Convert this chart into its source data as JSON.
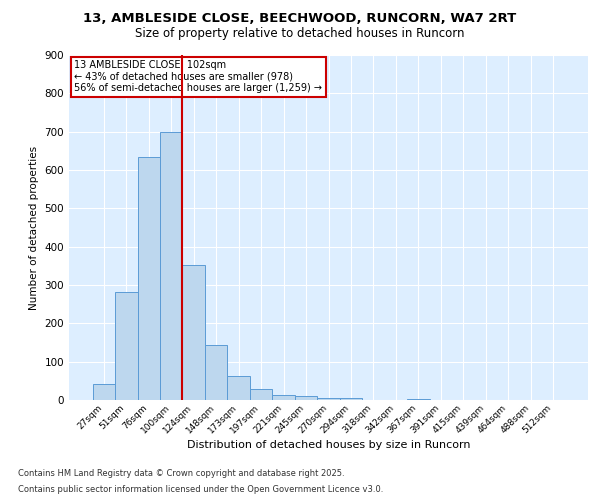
{
  "title_line1": "13, AMBLESIDE CLOSE, BEECHWOOD, RUNCORN, WA7 2RT",
  "title_line2": "Size of property relative to detached houses in Runcorn",
  "categories": [
    "27sqm",
    "51sqm",
    "76sqm",
    "100sqm",
    "124sqm",
    "148sqm",
    "173sqm",
    "197sqm",
    "221sqm",
    "245sqm",
    "270sqm",
    "294sqm",
    "318sqm",
    "342sqm",
    "367sqm",
    "391sqm",
    "415sqm",
    "439sqm",
    "464sqm",
    "488sqm",
    "512sqm"
  ],
  "values": [
    42,
    283,
    633,
    700,
    353,
    144,
    63,
    30,
    13,
    10,
    6,
    6,
    0,
    0,
    3,
    0,
    0,
    0,
    0,
    0,
    0
  ],
  "bar_color": "#bdd7ee",
  "bar_edge_color": "#5b9bd5",
  "bar_width": 1.0,
  "vline_x": 3.5,
  "vline_color": "#cc0000",
  "ylabel": "Number of detached properties",
  "xlabel": "Distribution of detached houses by size in Runcorn",
  "ylim": [
    0,
    900
  ],
  "yticks": [
    0,
    100,
    200,
    300,
    400,
    500,
    600,
    700,
    800,
    900
  ],
  "annotation_title": "13 AMBLESIDE CLOSE: 102sqm",
  "annotation_line2": "← 43% of detached houses are smaller (978)",
  "annotation_line3": "56% of semi-detached houses are larger (1,259) →",
  "annotation_box_color": "white",
  "annotation_edge_color": "#cc0000",
  "background_color": "#ddeeff",
  "grid_color": "white",
  "footnote_line1": "Contains HM Land Registry data © Crown copyright and database right 2025.",
  "footnote_line2": "Contains public sector information licensed under the Open Government Licence v3.0."
}
